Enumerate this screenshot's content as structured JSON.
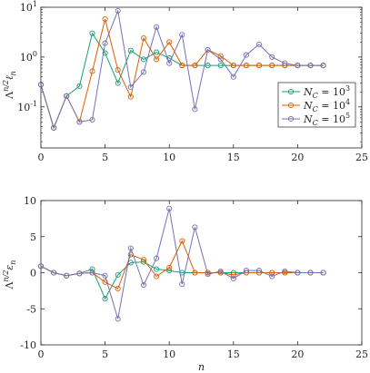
{
  "series_styles": [
    {
      "name": "N_C = 10^3",
      "color": "#1b9e77"
    },
    {
      "name": "N_C = 10^4",
      "color": "#d95f02"
    },
    {
      "name": "N_C = 10^5",
      "color": "#7570b3"
    }
  ],
  "chart_data": [
    {
      "type": "line",
      "yscale": "log",
      "xlim": [
        0,
        25
      ],
      "ylim": [
        0.015,
        10
      ],
      "grid": false,
      "legend": "right",
      "xticks": [
        "0",
        "5",
        "10",
        "15",
        "20",
        "25"
      ],
      "yticks": [
        "10^-1",
        "10^0",
        "10^1"
      ],
      "ylabel": {
        "base": "Λ",
        "sup": "n/2",
        "main": "ℓ",
        "sub": "n"
      },
      "x": [
        0,
        1,
        2,
        3,
        4,
        5,
        6,
        7,
        8,
        9,
        10,
        11,
        12,
        13,
        14,
        15,
        16,
        17,
        18,
        19,
        20,
        21,
        22
      ],
      "series": [
        {
          "name": "N_C = 10^3",
          "label_main": "N",
          "label_sub": "C",
          "label_rhs": " = 10",
          "label_exp": "3",
          "values": [
            0.28,
            0.038,
            0.165,
            0.26,
            3.0,
            1.2,
            0.3,
            1.35,
            0.9,
            1.25,
            0.95,
            0.68,
            0.68,
            0.68,
            0.68,
            0.68,
            0.68,
            0.68,
            0.68,
            0.68,
            0.68,
            0.68,
            0.68
          ]
        },
        {
          "name": "N_C = 10^4",
          "label_main": "N",
          "label_sub": "C",
          "label_rhs": " = 10",
          "label_exp": "4",
          "values": [
            0.28,
            0.038,
            0.165,
            0.05,
            0.52,
            5.8,
            0.55,
            0.16,
            2.4,
            0.9,
            2.0,
            0.68,
            0.68,
            1.4,
            1.05,
            0.68,
            0.68,
            0.68,
            0.68,
            0.68,
            0.68,
            0.68,
            0.68
          ]
        },
        {
          "name": "N_C = 10^5",
          "label_main": "N",
          "label_sub": "C",
          "label_rhs": " = 10",
          "label_exp": "5",
          "values": [
            0.28,
            0.038,
            0.165,
            0.05,
            0.055,
            1.9,
            8.5,
            0.25,
            0.5,
            4.0,
            0.75,
            2.8,
            0.09,
            1.4,
            0.9,
            0.4,
            1.1,
            1.8,
            1.0,
            0.75,
            0.68,
            0.68,
            0.68
          ]
        }
      ]
    },
    {
      "type": "line",
      "xlim": [
        0,
        25
      ],
      "ylim": [
        -10,
        10
      ],
      "grid": false,
      "xticks": [
        "0",
        "5",
        "10",
        "15",
        "20",
        "25"
      ],
      "yticks": [
        "-10",
        "-5",
        "0",
        "5",
        "10"
      ],
      "xlabel": "n",
      "ylabel": {
        "base": "Λ",
        "sup": "n/2",
        "main": "ε",
        "sub": "n"
      },
      "x": [
        0,
        1,
        2,
        3,
        4,
        5,
        6,
        7,
        8,
        9,
        10,
        11,
        12,
        13,
        14,
        15,
        16,
        17,
        18,
        19,
        20,
        21,
        22
      ],
      "series": [
        {
          "name": "N_C = 10^3",
          "values": [
            0.9,
            0,
            -0.4,
            -0.1,
            0.5,
            -3.6,
            -0.3,
            1.4,
            1.5,
            0.5,
            0.3,
            0,
            0,
            0,
            0,
            0,
            0,
            0,
            0,
            0,
            0,
            0,
            0
          ]
        },
        {
          "name": "N_C = 10^4",
          "values": [
            0.9,
            0,
            -0.4,
            -0.1,
            0,
            -1.3,
            -2.2,
            2.5,
            1.8,
            -0.5,
            0.7,
            4.4,
            0,
            0,
            0,
            -0.3,
            0,
            0,
            0,
            0,
            0,
            0,
            0
          ]
        },
        {
          "name": "N_C = 10^5",
          "values": [
            0.9,
            0,
            -0.4,
            -0.1,
            0,
            -0.4,
            -6.4,
            3.4,
            -1.7,
            2.0,
            8.9,
            -1.6,
            6.3,
            -0.2,
            0.2,
            -0.8,
            0.3,
            0.3,
            -0.5,
            0.2,
            0,
            0,
            0
          ]
        }
      ]
    }
  ]
}
